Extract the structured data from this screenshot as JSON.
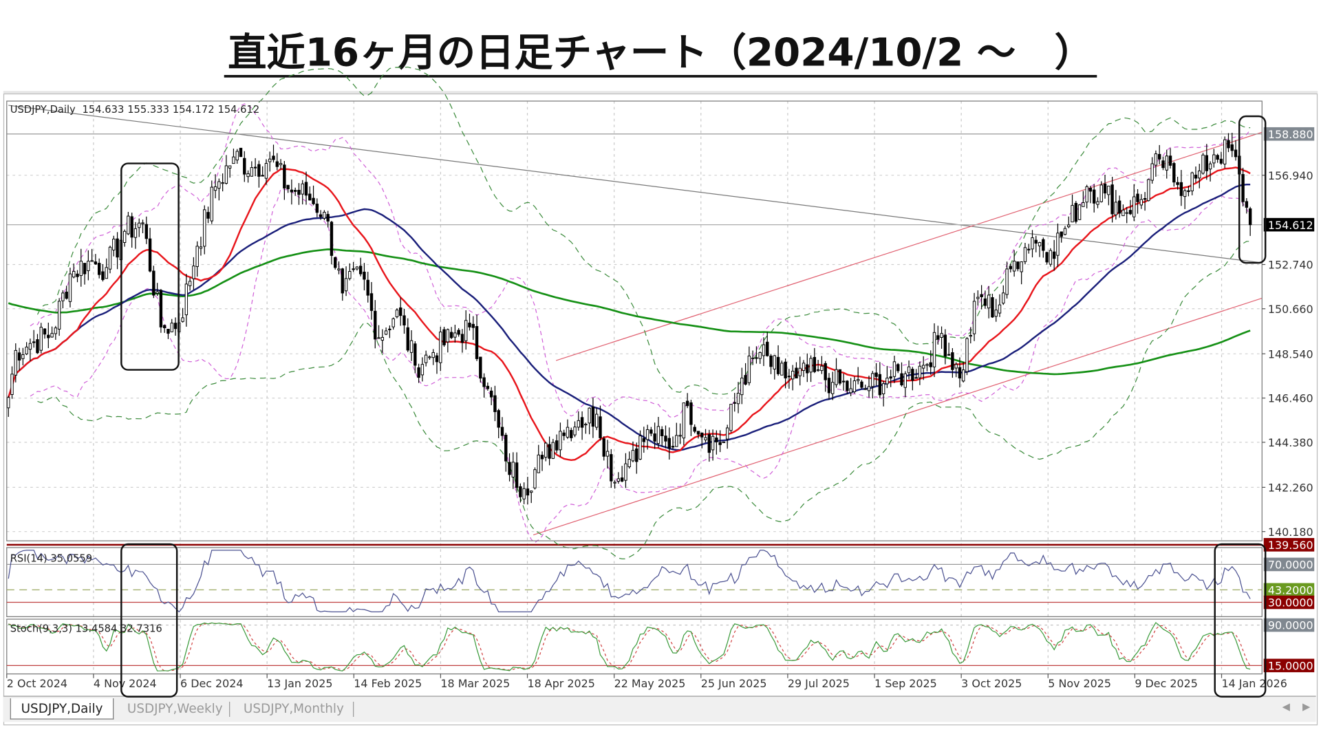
{
  "title": "直近16ヶ月の日足チャート（2024/10/2 ～　）",
  "chart_header": {
    "symbol": "USDJPY,Daily",
    "open": "154.633",
    "high": "155.333",
    "low": "154.172",
    "close": "154.612"
  },
  "tabs": [
    {
      "label": "USDJPY,Daily",
      "active": true
    },
    {
      "label": "USDJPY,Weekly",
      "active": false
    },
    {
      "label": "USDJPY,Monthly",
      "active": false
    }
  ],
  "colors": {
    "bull": "#ffffff",
    "bear": "#000000",
    "ma_fast": "#e8151b",
    "ma_mid": "#1a1f7a",
    "ma_slow": "#159015",
    "bollinger": "#d060d8",
    "envelope": "#3a8a3a",
    "rsi": "#4a5090",
    "stoch_main": "#3a9a3a",
    "stoch_signal": "#d04040",
    "level_red": "#8b0000",
    "level_green": "#6a9a20",
    "level_grey": "#808890"
  },
  "chart_data": {
    "type": "candlestick",
    "timeframe": "Daily",
    "weekly_closes": [
      [
        "2024-10-04",
        148.7
      ],
      [
        "2024-10-11",
        149.1
      ],
      [
        "2024-10-18",
        149.5
      ],
      [
        "2024-10-25",
        152.3
      ],
      [
        "2024-11-01",
        152.9
      ],
      [
        "2024-11-08",
        152.6
      ],
      [
        "2024-11-15",
        154.3
      ],
      [
        "2024-11-22",
        154.7
      ],
      [
        "2024-11-29",
        149.8
      ],
      [
        "2024-12-06",
        150.0
      ],
      [
        "2024-12-13",
        153.6
      ],
      [
        "2024-12-20",
        156.4
      ],
      [
        "2024-12-27",
        157.8
      ],
      [
        "2025-01-03",
        157.3
      ],
      [
        "2025-01-10",
        157.7
      ],
      [
        "2025-01-17",
        156.3
      ],
      [
        "2025-01-24",
        156.0
      ],
      [
        "2025-01-31",
        155.2
      ],
      [
        "2025-02-07",
        151.4
      ],
      [
        "2025-02-14",
        152.3
      ],
      [
        "2025-02-21",
        149.3
      ],
      [
        "2025-02-28",
        150.6
      ],
      [
        "2025-03-07",
        148.0
      ],
      [
        "2025-03-14",
        148.6
      ],
      [
        "2025-03-21",
        149.3
      ],
      [
        "2025-03-28",
        149.8
      ],
      [
        "2025-04-04",
        146.9
      ],
      [
        "2025-04-11",
        143.5
      ],
      [
        "2025-04-18",
        142.2
      ],
      [
        "2025-04-25",
        143.6
      ],
      [
        "2025-05-02",
        144.9
      ],
      [
        "2025-05-09",
        145.4
      ],
      [
        "2025-05-16",
        145.7
      ],
      [
        "2025-05-23",
        142.5
      ],
      [
        "2025-05-30",
        144.0
      ],
      [
        "2025-06-06",
        144.8
      ],
      [
        "2025-06-13",
        144.1
      ],
      [
        "2025-06-20",
        146.1
      ],
      [
        "2025-06-27",
        144.6
      ],
      [
        "2025-07-04",
        144.4
      ],
      [
        "2025-07-11",
        147.4
      ],
      [
        "2025-07-18",
        148.6
      ],
      [
        "2025-07-25",
        147.6
      ],
      [
        "2025-08-01",
        147.4
      ],
      [
        "2025-08-08",
        147.7
      ],
      [
        "2025-08-15",
        147.2
      ],
      [
        "2025-08-22",
        146.9
      ],
      [
        "2025-08-29",
        147.0
      ],
      [
        "2025-09-05",
        147.4
      ],
      [
        "2025-09-12",
        147.6
      ],
      [
        "2025-09-19",
        148.0
      ],
      [
        "2025-09-26",
        149.5
      ],
      [
        "2025-10-03",
        147.4
      ],
      [
        "2025-10-10",
        151.2
      ],
      [
        "2025-10-17",
        150.6
      ],
      [
        "2025-10-24",
        152.9
      ],
      [
        "2025-10-31",
        154.0
      ],
      [
        "2025-11-07",
        153.4
      ],
      [
        "2025-11-14",
        154.6
      ],
      [
        "2025-11-21",
        156.4
      ],
      [
        "2025-11-28",
        156.1
      ],
      [
        "2025-12-05",
        155.3
      ],
      [
        "2025-12-12",
        155.8
      ],
      [
        "2025-12-19",
        157.7
      ],
      [
        "2025-12-26",
        156.5
      ],
      [
        "2026-01-02",
        156.8
      ],
      [
        "2026-01-09",
        157.9
      ],
      [
        "2026-01-16",
        158.1
      ],
      [
        "2026-01-23",
        154.612
      ]
    ],
    "y_ticks": [
      "156.940",
      "152.740",
      "150.660",
      "148.540",
      "146.460",
      "144.380",
      "142.260",
      "140.180"
    ],
    "ylim": [
      139.4,
      160.1
    ],
    "x_ticks": [
      "2 Oct 2024",
      "4 Nov 2024",
      "6 Dec 2024",
      "13 Jan 2025",
      "14 Feb 2025",
      "18 Mar 2025",
      "18 Apr 2025",
      "22 May 2025",
      "25 Jun 2025",
      "29 Jul 2025",
      "1 Sep 2025",
      "3 Oct 2025",
      "5 Nov 2025",
      "9 Dec 2025",
      "14 Jan 2026"
    ],
    "price_labels": [
      {
        "value": "158.880",
        "style": "grey"
      },
      {
        "value": "154.612",
        "style": "black"
      },
      {
        "value": "139.560",
        "style": "red"
      }
    ],
    "grid": true,
    "rsi": {
      "label": "RSI(14) 35.0559",
      "levels": [
        {
          "value": "70.0000",
          "style": "grey"
        },
        {
          "value": "43.2000",
          "style": "green"
        },
        {
          "value": "30.0000",
          "style": "red"
        }
      ]
    },
    "stoch": {
      "label": "Stoch(9,3,3) 13.4584 32.7316",
      "levels": [
        {
          "value": "90.0000",
          "style": "grey"
        },
        {
          "value": "15.0000",
          "style": "red"
        }
      ]
    }
  }
}
